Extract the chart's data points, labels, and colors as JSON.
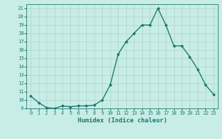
{
  "x": [
    0,
    1,
    2,
    3,
    4,
    5,
    6,
    7,
    8,
    9,
    10,
    11,
    12,
    13,
    14,
    15,
    16,
    17,
    18,
    19,
    20,
    21,
    22,
    23
  ],
  "y": [
    10.5,
    9.7,
    9.1,
    9.0,
    9.3,
    9.2,
    9.3,
    9.3,
    9.4,
    10.0,
    11.8,
    15.5,
    17.0,
    18.0,
    19.0,
    19.0,
    21.0,
    19.0,
    16.5,
    16.5,
    15.2,
    13.7,
    11.8,
    10.7
  ],
  "xlabel": "Humidex (Indice chaleur)",
  "ylabel": "",
  "xlim": [
    -0.5,
    23.5
  ],
  "ylim": [
    9,
    21.5
  ],
  "yticks": [
    9,
    10,
    11,
    12,
    13,
    14,
    15,
    16,
    17,
    18,
    19,
    20,
    21
  ],
  "xticks": [
    0,
    1,
    2,
    3,
    4,
    5,
    6,
    7,
    8,
    9,
    10,
    11,
    12,
    13,
    14,
    15,
    16,
    17,
    18,
    19,
    20,
    21,
    22,
    23
  ],
  "line_color": "#1a7a6e",
  "marker": "o",
  "marker_size": 1.8,
  "bg_color": "#c8ece6",
  "grid_color": "#aad4cc",
  "tick_color": "#1a7a6e",
  "label_color": "#1a7a6e",
  "line_width": 1.0,
  "tick_fontsize": 5.0,
  "xlabel_fontsize": 6.5
}
